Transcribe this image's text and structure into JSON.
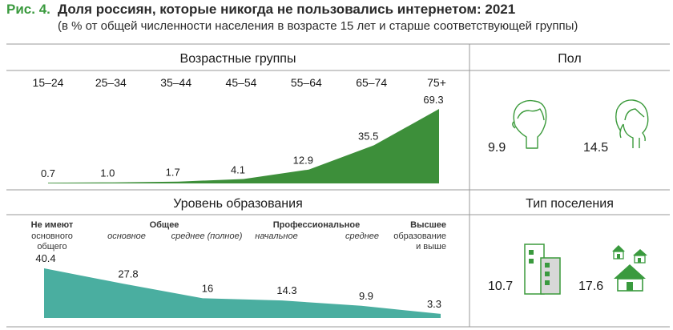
{
  "figure": {
    "label": "Рис. 4.",
    "title": "Доля россиян, которые никогда не пользовались интернетом: 2021",
    "subtitle": "(в % от общей численности населения в возрасте 15 лет и старше соответствующей группы)"
  },
  "colors": {
    "accent": "#3a9a3e",
    "age_fill": "#3d8f3a",
    "edu_fill": "#4aaea0",
    "icon_stroke": "#3b9a3b",
    "grid": "#9a9a9a"
  },
  "chart_data": [
    {
      "type": "area",
      "title": "Возрастные группы",
      "categories": [
        "15–24",
        "25–34",
        "35–44",
        "45–54",
        "55–64",
        "65–74",
        "75+"
      ],
      "values": [
        0.7,
        1.0,
        1.7,
        4.1,
        12.9,
        35.5,
        69.3
      ],
      "value_labels": [
        "0.7",
        "1.0",
        "1.7",
        "4.1",
        "12.9",
        "35.5",
        "69.3"
      ],
      "ylim": [
        0,
        69.3
      ]
    },
    {
      "type": "bar",
      "title": "Пол",
      "categories": [
        "Мужчины",
        "Женщины"
      ],
      "values": [
        9.9,
        14.5
      ],
      "value_labels": [
        "9.9",
        "14.5"
      ],
      "icons": [
        "male-head-icon",
        "female-head-icon"
      ]
    },
    {
      "type": "area",
      "title": "Уровень образования",
      "categories": [
        {
          "group": "Не имеют",
          "label": "основного общего"
        },
        {
          "group": "Общее",
          "label": "основное"
        },
        {
          "group": "",
          "label": "среднее (полное)"
        },
        {
          "group": "Профессиональное",
          "label": "начальное"
        },
        {
          "group": "",
          "label": "среднее"
        },
        {
          "group": "Высшее",
          "label": "образование и выше"
        }
      ],
      "values": [
        40.4,
        27.8,
        16,
        14.3,
        9.9,
        3.3
      ],
      "value_labels": [
        "40.4",
        "27.8",
        "16",
        "14.3",
        "9.9",
        "3.3"
      ],
      "ylim": [
        0,
        40.4
      ]
    },
    {
      "type": "bar",
      "title": "Тип поселения",
      "categories": [
        "Город",
        "Село"
      ],
      "values": [
        10.7,
        17.6
      ],
      "value_labels": [
        "10.7",
        "17.6"
      ],
      "icons": [
        "city-building-icon",
        "rural-houses-icon"
      ]
    }
  ]
}
